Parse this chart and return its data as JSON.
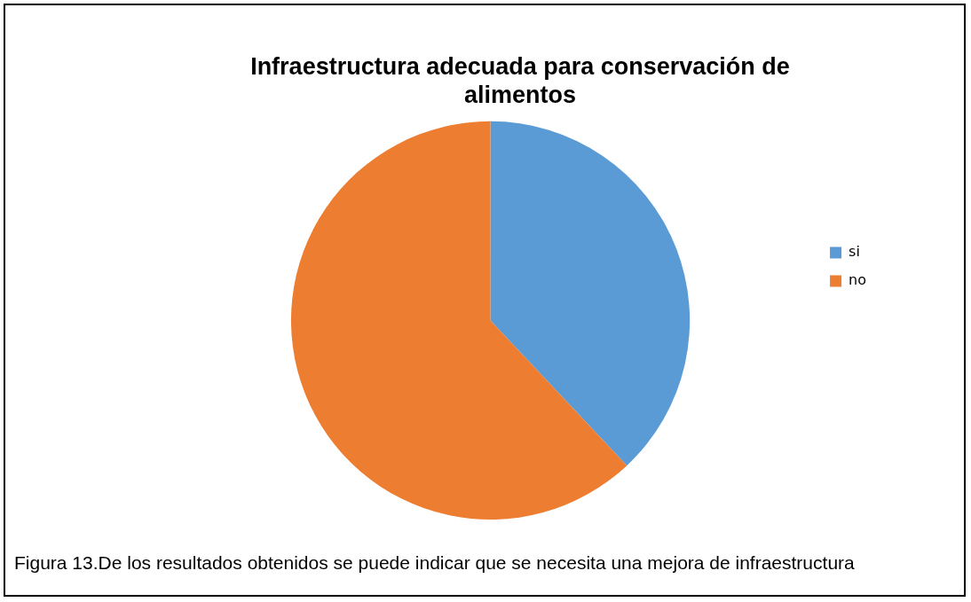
{
  "chart_data": {
    "type": "pie",
    "title": "Infraestructura adecuada para conservación de alimentos",
    "categories": [
      "si",
      "no"
    ],
    "values": [
      38,
      62
    ],
    "colors": [
      "#5b9bd5",
      "#ed7d31"
    ],
    "legend": "right",
    "annotations": [
      "Figura 13.De los resultados obtenidos se puede indicar que se necesita una mejora de infraestructura"
    ]
  }
}
